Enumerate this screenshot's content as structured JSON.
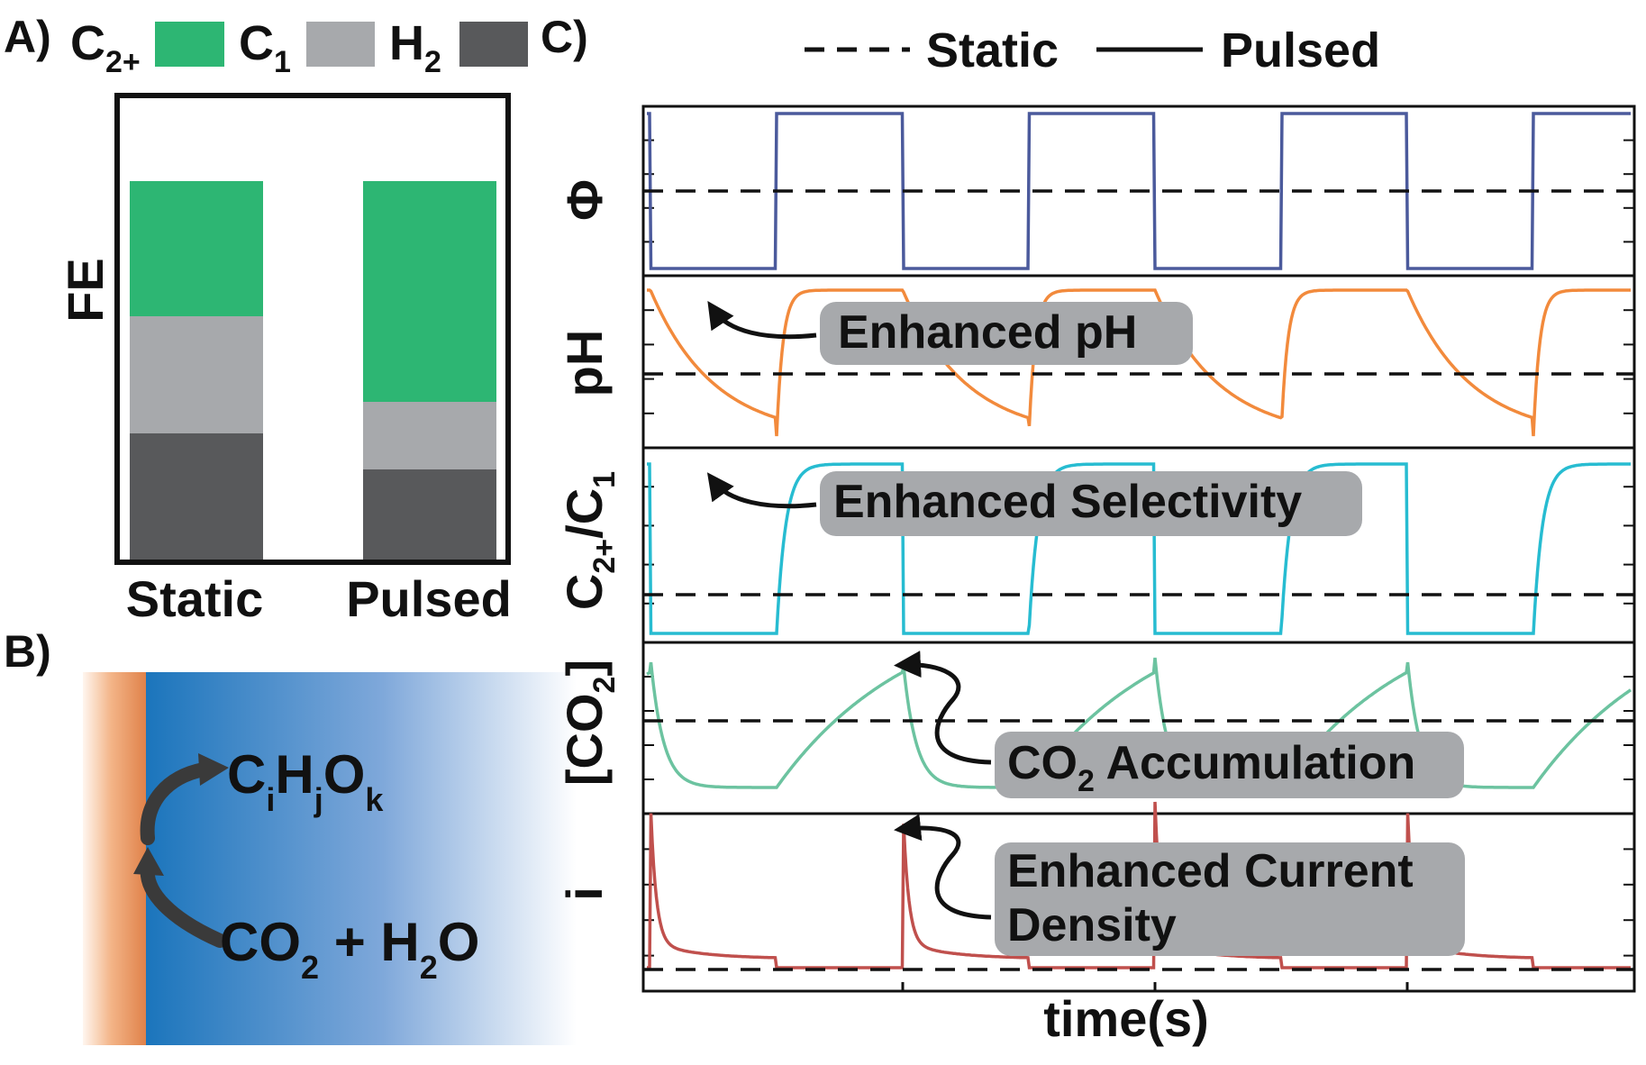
{
  "panel_labels": {
    "a": "A)",
    "b": "B)",
    "c": "C)"
  },
  "panel_a": {
    "legend": [
      {
        "label": "C",
        "sub": "2+",
        "color": "#2db673"
      },
      {
        "label": "C",
        "sub": "1",
        "color": "#a7a9ac"
      },
      {
        "label": "H",
        "sub": "2",
        "color": "#58595b"
      }
    ],
    "ylabel": "FE",
    "categories": [
      "Static",
      "Pulsed"
    ]
  },
  "panel_b": {
    "reactant": {
      "a": "CO",
      "a_sub": "2",
      "b": " + H",
      "b_sub": "2",
      "c": "O"
    },
    "product": {
      "c": "C",
      "c_sub": "i",
      "h": "H",
      "h_sub": "j",
      "o": "O",
      "o_sub": "k"
    },
    "electrode_color": "#f0a070",
    "electrolyte_color": "#1b75bc"
  },
  "panel_c": {
    "legend": {
      "static": "Static",
      "pulsed": "Pulsed"
    },
    "xlabel": "time(s)",
    "rows": [
      {
        "ylabel": "Φ",
        "color": "#4b5a9c"
      },
      {
        "ylabel": "pH",
        "color": "#f28a3c"
      },
      {
        "ylabel_main": "C",
        "ylabel_sub1": "2+",
        "ylabel_mid": "/C",
        "ylabel_sub2": "1",
        "color": "#27bcd1"
      },
      {
        "ylabel_open": "[CO",
        "ylabel_sub": "2",
        "ylabel_close": "]",
        "color": "#6cc3a0"
      },
      {
        "ylabel": "i",
        "color": "#c0504d"
      }
    ],
    "callouts": {
      "ph": "Enhanced pH",
      "selectivity": "Enhanced Selectivity",
      "co2_main": "CO",
      "co2_sub": "2",
      "co2_rest": " Accumulation",
      "current_line1": "Enhanced Current",
      "current_line2": "Density"
    }
  },
  "chart_data": {
    "type": "bar",
    "stacked": true,
    "categories": [
      "Static",
      "Pulsed"
    ],
    "series": [
      {
        "name": "H2",
        "values": [
          0.28,
          0.2
        ]
      },
      {
        "name": "C1",
        "values": [
          0.26,
          0.15
        ]
      },
      {
        "name": "C2+",
        "values": [
          0.3,
          0.49
        ]
      }
    ],
    "ylabel": "FE",
    "ylim": [
      0,
      1
    ],
    "legend": "top",
    "ticks": "none"
  }
}
